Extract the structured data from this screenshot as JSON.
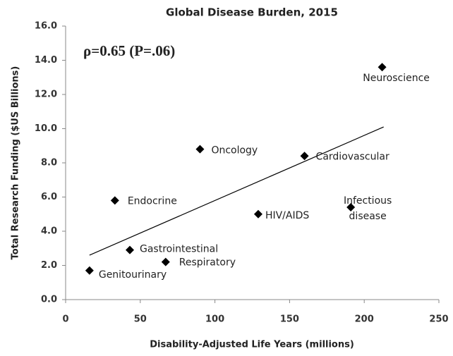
{
  "chart_data": {
    "type": "scatter",
    "title": "Global Disease Burden, 2015",
    "annotation": "ρ=0.65 (P=.06)",
    "xlabel": "Disability-Adjusted Life Years (millions)",
    "ylabel": "Total Research Funding ($US Billions)",
    "points": [
      {
        "label": "Neuroscience",
        "x": 212,
        "y": 13.6
      },
      {
        "label": "Cardiovascular",
        "x": 160,
        "y": 8.4
      },
      {
        "label": "Oncology",
        "x": 90,
        "y": 8.8
      },
      {
        "label": "Endocrine",
        "x": 33,
        "y": 5.8
      },
      {
        "label": "HIV/AIDS",
        "x": 129,
        "y": 5.0
      },
      {
        "label": "Infectious disease",
        "x": 191,
        "y": 5.4
      },
      {
        "label": "Gastrointestinal",
        "x": 43,
        "y": 2.9
      },
      {
        "label": "Respiratory",
        "x": 67,
        "y": 2.2
      },
      {
        "label": "Genitourinary",
        "x": 16,
        "y": 1.7
      }
    ],
    "color": "#000000",
    "trendline": {
      "x": [
        16,
        213
      ],
      "y": [
        2.6,
        10.1
      ]
    },
    "xlim": [
      0,
      250
    ],
    "xticks": [
      0,
      50,
      100,
      150,
      200,
      250
    ],
    "ylim": [
      0,
      16
    ],
    "yticks": [
      {
        "value": 0,
        "label": "0.0"
      },
      {
        "value": 2,
        "label": "2.0"
      },
      {
        "value": 4,
        "label": "4.0"
      },
      {
        "value": 6,
        "label": "6.0"
      },
      {
        "value": 8,
        "label": "8.0"
      },
      {
        "value": 10,
        "label": "10.0"
      },
      {
        "value": 12,
        "label": "12.0"
      },
      {
        "value": 14,
        "label": "14.0"
      },
      {
        "value": 16,
        "label": "16.0"
      }
    ],
    "grid": false
  }
}
